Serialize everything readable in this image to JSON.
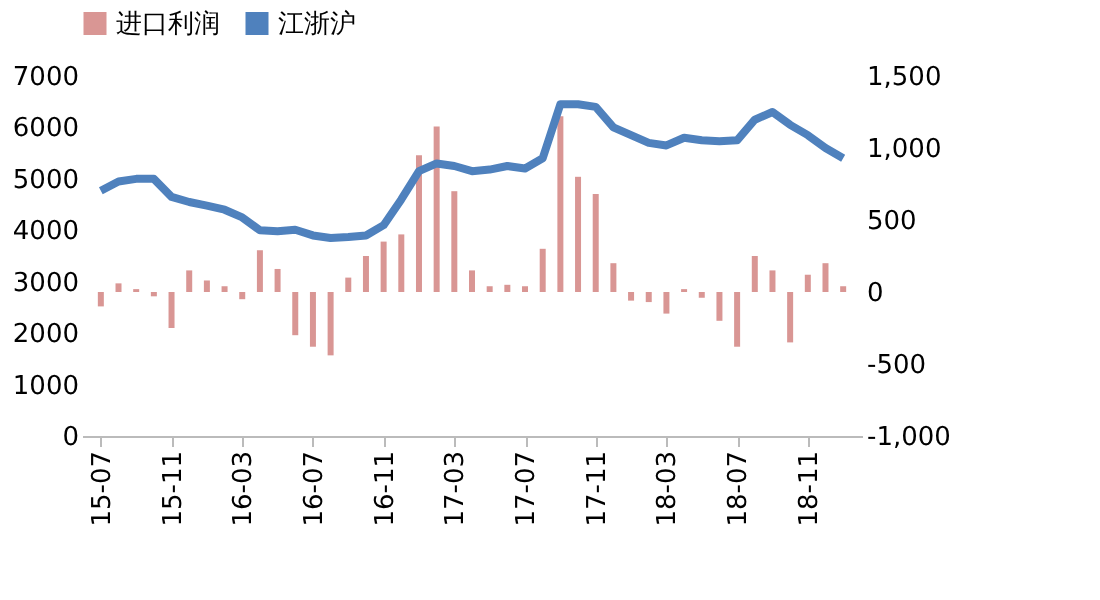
{
  "chart_data": {
    "type": "bar",
    "categories": [
      "15-07",
      null,
      null,
      null,
      "15-11",
      null,
      null,
      null,
      "16-03",
      null,
      null,
      null,
      "16-07",
      null,
      null,
      null,
      "16-11",
      null,
      null,
      null,
      "17-03",
      null,
      null,
      null,
      "17-07",
      null,
      null,
      null,
      "17-11",
      null,
      null,
      null,
      "18-03",
      null,
      null,
      null,
      "18-07",
      null,
      null,
      null,
      "18-11",
      null,
      null
    ],
    "series": [
      {
        "name": "进口利润",
        "axis": "y2",
        "color": "#d99694",
        "values": [
          -100,
          60,
          20,
          -30,
          -250,
          150,
          80,
          40,
          -50,
          290,
          160,
          -300,
          -380,
          -440,
          100,
          250,
          350,
          400,
          950,
          1150,
          700,
          150,
          40,
          50,
          40,
          300,
          1220,
          800,
          680,
          200,
          -60,
          -70,
          -150,
          20,
          -40,
          -200,
          -380,
          250,
          150,
          -350,
          120,
          200,
          40
        ]
      },
      {
        "name": "江浙沪",
        "type": "line",
        "color": "#4f81bd",
        "values": [
          4770,
          4950,
          5000,
          5000,
          4650,
          4550,
          4480,
          4400,
          4250,
          4000,
          3980,
          4010,
          3900,
          3850,
          3870,
          3900,
          4100,
          4600,
          5150,
          5300,
          5250,
          5150,
          5180,
          5250,
          5200,
          5400,
          6450,
          6450,
          6400,
          6000,
          5850,
          5700,
          5650,
          5800,
          5750,
          5730,
          5750,
          6150,
          6300,
          6050,
          5850,
          5600,
          5400
        ]
      }
    ],
    "ylim": [
      0,
      7000
    ],
    "yticks": [
      0,
      1000,
      2000,
      3000,
      4000,
      5000,
      6000,
      7000
    ],
    "y2lim": [
      -1000,
      1500
    ],
    "y2ticks": [
      {
        "value": -1000,
        "label": "-1,000"
      },
      -500,
      0,
      500,
      {
        "value": 1000,
        "label": "1,000"
      },
      {
        "value": 1500,
        "label": "1,500"
      }
    ],
    "legend": "top",
    "grid": false
  }
}
